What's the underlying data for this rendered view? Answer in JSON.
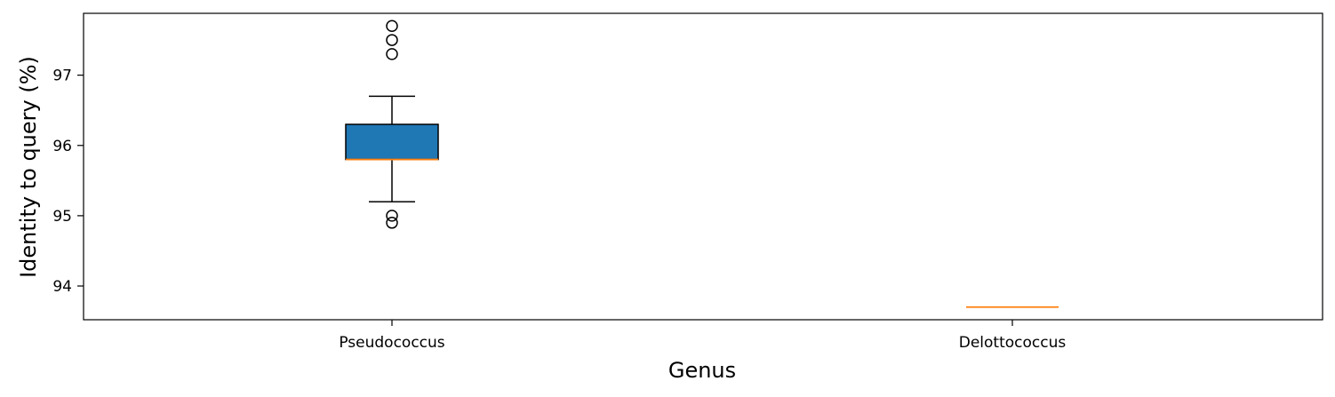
{
  "chart_data": {
    "type": "box",
    "categories": [
      "Pseudococcus",
      "Delottococcus"
    ],
    "boxes": [
      {
        "category": "Pseudococcus",
        "whisker_low": 95.2,
        "q1": 95.8,
        "median": 95.8,
        "q3": 96.3,
        "whisker_high": 96.7,
        "outliers": [
          94.9,
          95.0,
          97.3,
          97.5,
          97.7
        ]
      },
      {
        "category": "Delottococcus",
        "whisker_low": 93.7,
        "q1": 93.7,
        "median": 93.7,
        "q3": 93.7,
        "whisker_high": 93.7,
        "outliers": []
      }
    ],
    "xlabel": "Genus",
    "ylabel": "Identity to query (%)",
    "ylim": [
      93.52,
      97.88
    ],
    "yticks": [
      94,
      95,
      96,
      97
    ],
    "grid": false,
    "colors": {
      "box_fill": "#1f77b4",
      "median_line": "#ff7f0e",
      "lines": "#000000",
      "outlier_edge": "#000000"
    }
  }
}
